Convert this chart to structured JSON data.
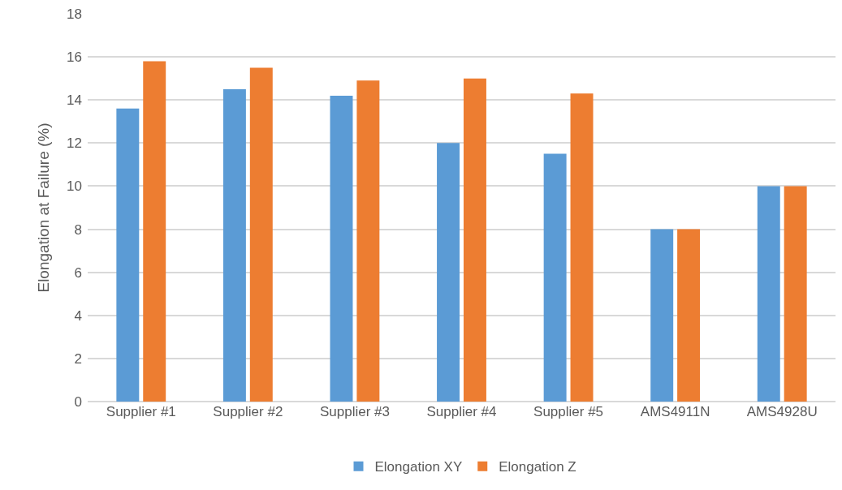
{
  "chart_data": {
    "type": "bar",
    "ylabel": "Elongation at Failure (%)",
    "categories": [
      "Supplier #1",
      "Supplier #2",
      "Supplier #3",
      "Supplier #4",
      "Supplier #5",
      "AMS4911N",
      "AMS4928U"
    ],
    "series": [
      {
        "name": "Elongation XY",
        "color": "#5b9bd5",
        "values": [
          13.6,
          14.5,
          14.2,
          12.0,
          11.5,
          8,
          10
        ]
      },
      {
        "name": "Elongation Z",
        "color": "#ed7d31",
        "values": [
          15.8,
          15.5,
          14.9,
          15.0,
          14.3,
          8,
          10
        ]
      }
    ],
    "ylim": [
      0,
      18
    ],
    "yticks": [
      0,
      2,
      4,
      6,
      8,
      10,
      12,
      14,
      16,
      18
    ],
    "grid": "y",
    "legend": "bottom"
  }
}
